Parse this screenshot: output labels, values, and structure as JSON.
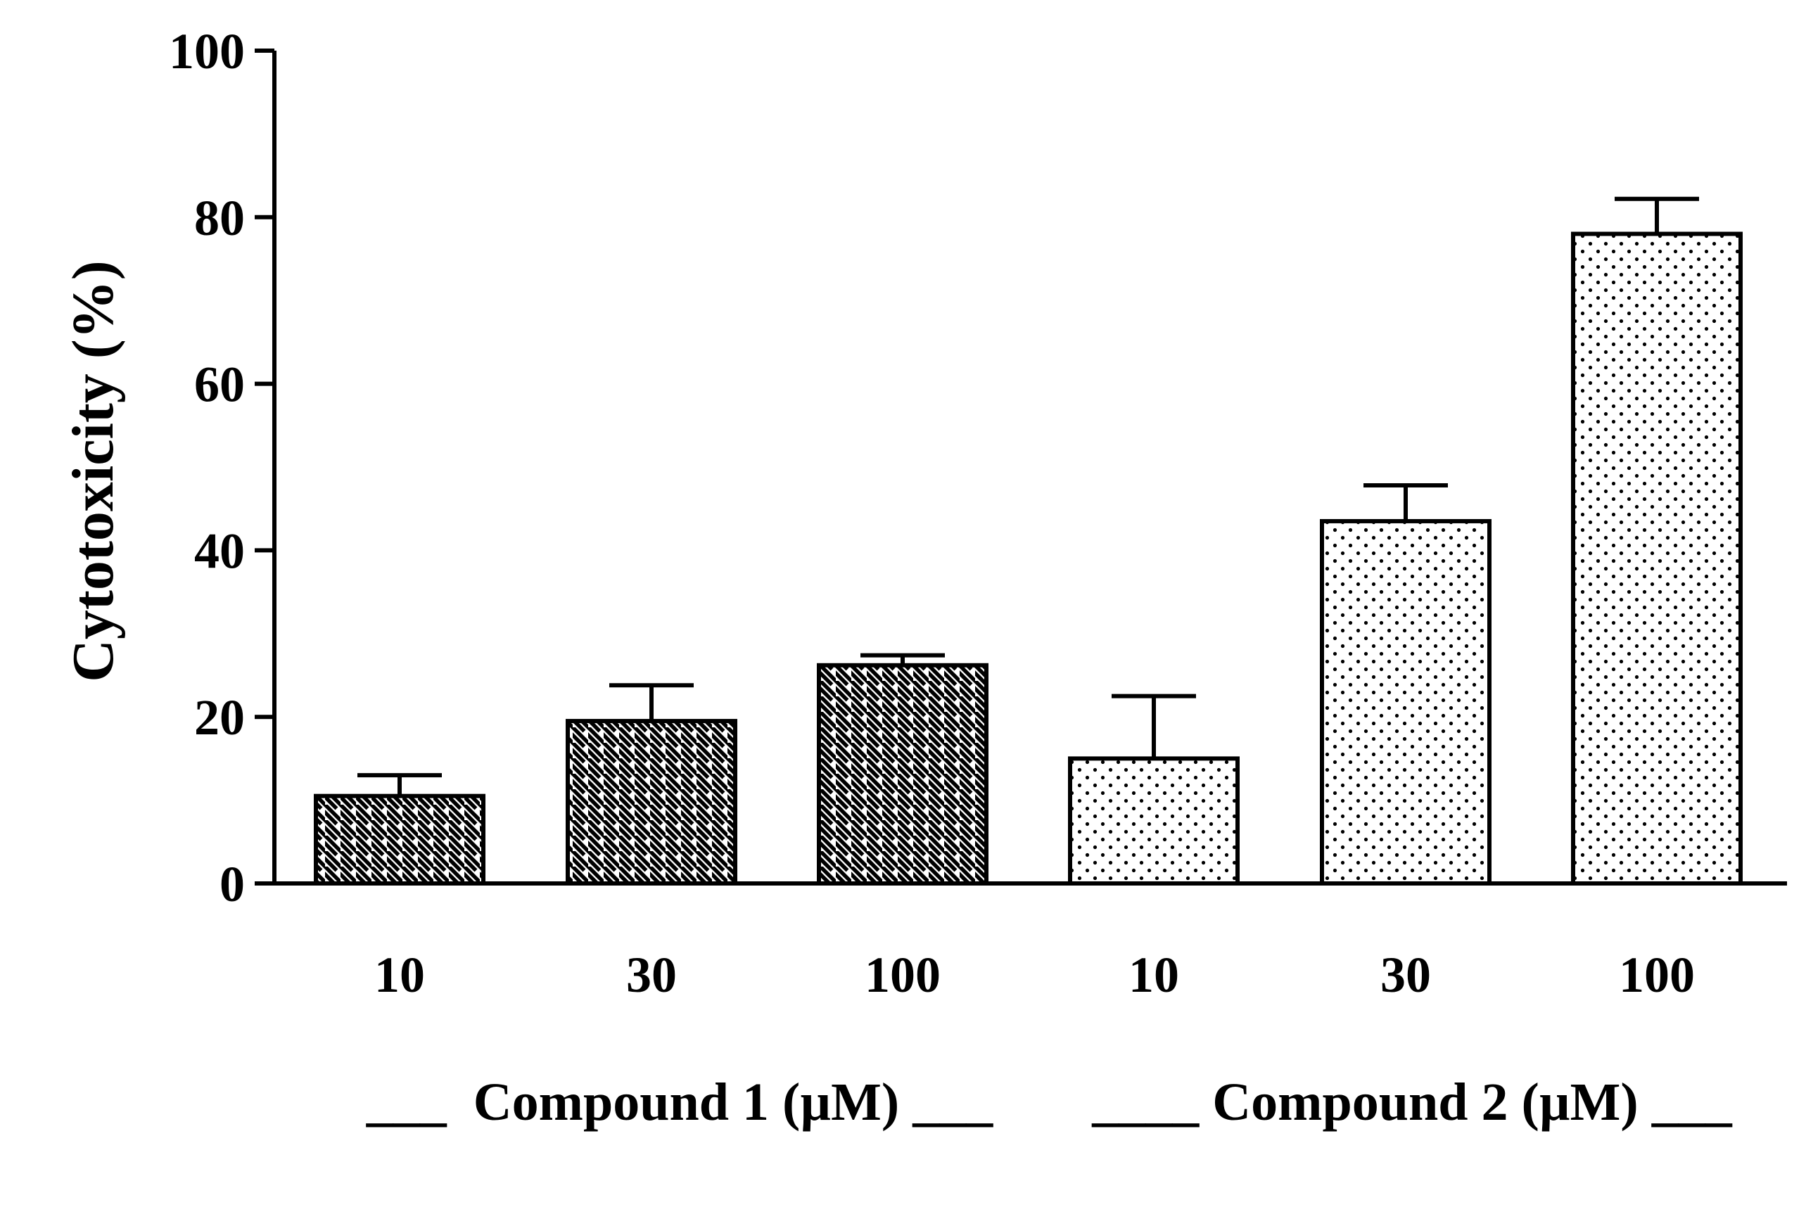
{
  "chart_data": {
    "type": "bar",
    "title": "",
    "xlabel": "",
    "ylabel": "Cytotoxicity (%)",
    "ylim": [
      0,
      100
    ],
    "yticks": [
      0,
      20,
      40,
      60,
      80,
      100
    ],
    "grid": false,
    "categories": [
      "10",
      "30",
      "100",
      "10",
      "30",
      "100"
    ],
    "values": [
      10.5,
      19.5,
      26.2,
      15.0,
      43.5,
      78.0
    ],
    "errors": [
      2.5,
      4.3,
      1.2,
      7.5,
      4.3,
      4.2
    ],
    "patterns": [
      "hatch",
      "hatch",
      "hatch",
      "dots",
      "dots",
      "dots"
    ],
    "groups": [
      {
        "label": "___  Compound 1 (µM) ___",
        "pattern": "hatch",
        "start": 0,
        "end": 2
      },
      {
        "label": "____ Compound 2 (µM) ___",
        "pattern": "dots",
        "start": 3,
        "end": 5
      }
    ],
    "colors": {
      "stroke": "#000000",
      "fill": "#ffffff"
    }
  }
}
